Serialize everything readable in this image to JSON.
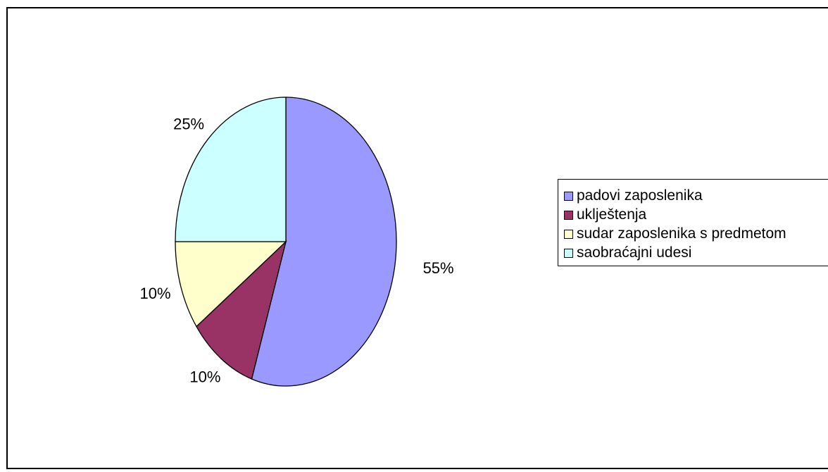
{
  "chart_data": {
    "type": "pie",
    "categories": [
      "padovi zaposlenika",
      "uklještenja",
      "sudar zaposlenika s predmetom",
      "saobraćajni udesi"
    ],
    "values": [
      55,
      10,
      10,
      25
    ],
    "data_labels": [
      "55%",
      "10%",
      "10%",
      "25%"
    ],
    "colors": [
      "#9999ff",
      "#993366",
      "#ffffcc",
      "#ccffff"
    ],
    "legend_position": "right",
    "grid": false
  }
}
